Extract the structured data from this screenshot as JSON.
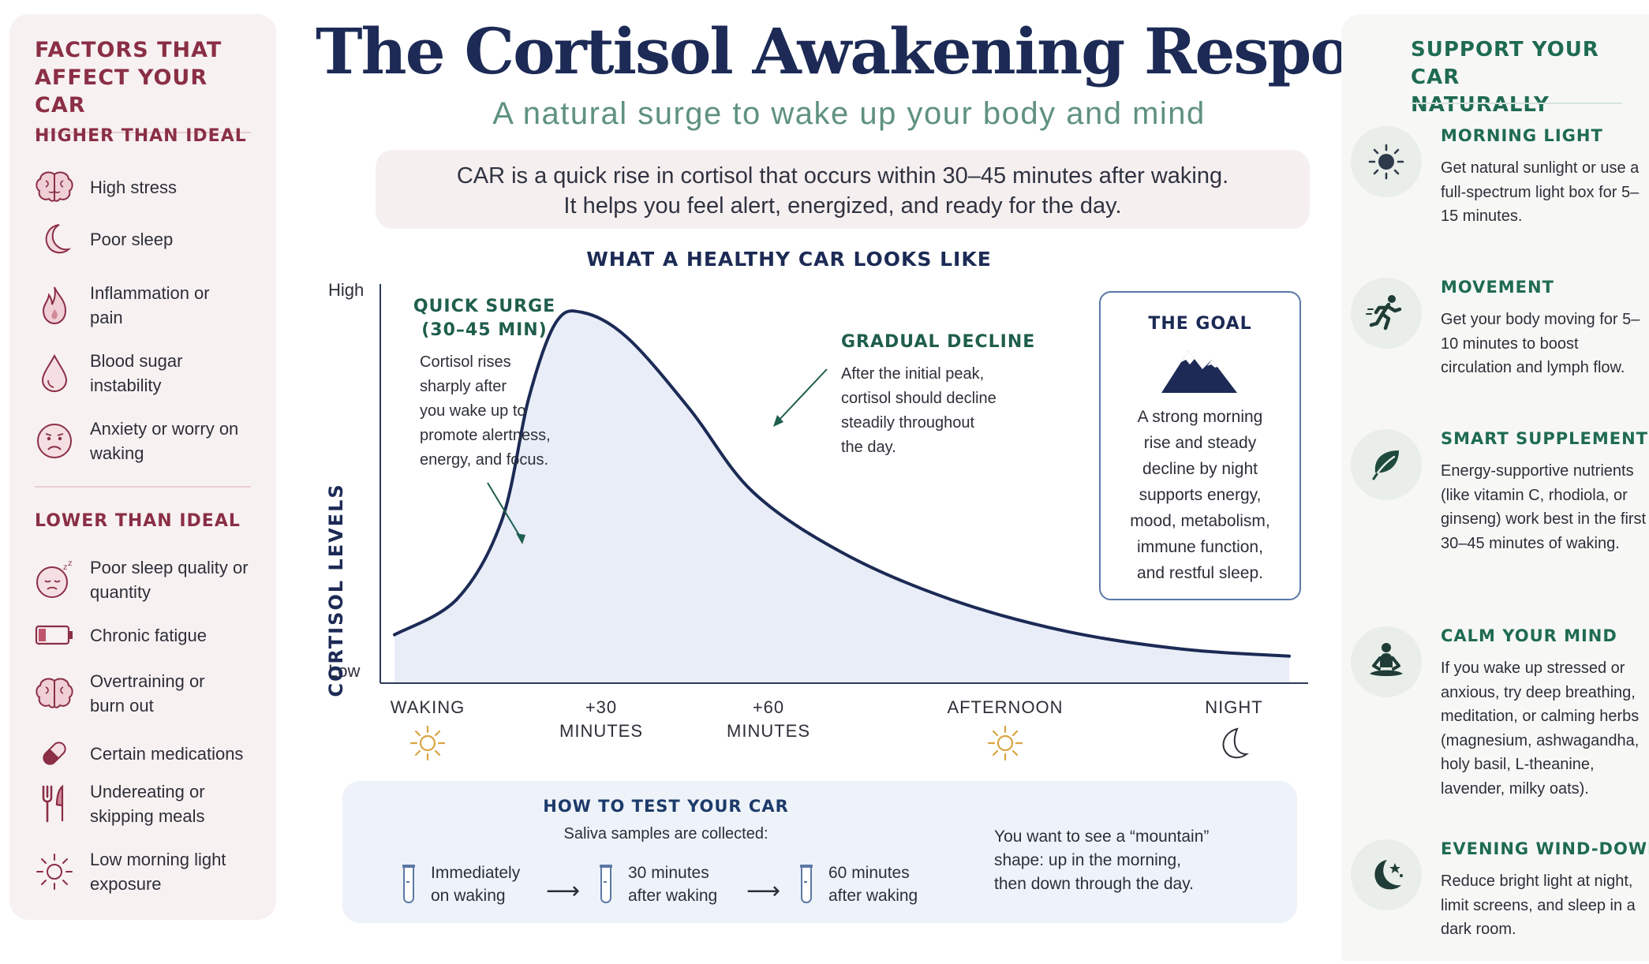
{
  "title": "The Cortisol Awakening Response (CAR)",
  "subtitle": "A natural surge to wake up your body and mind",
  "intro": {
    "line1": "CAR is a quick rise in cortisol that occurs within 30–45 minutes after waking.",
    "line2": "It helps you feel alert, energized, and ready for the day."
  },
  "left": {
    "title_line1": "FACTORS THAT",
    "title_line2": "AFFECT YOUR CAR",
    "higher": {
      "heading": "HIGHER THAN IDEAL",
      "items": [
        {
          "icon": "brain-icon",
          "text": "High stress"
        },
        {
          "icon": "moon-icon",
          "text": "Poor sleep"
        },
        {
          "icon": "flame-icon",
          "text": "Inflammation or pain"
        },
        {
          "icon": "drop-icon",
          "text": "Blood sugar instability"
        },
        {
          "icon": "worried-face-icon",
          "text": "Anxiety or worry on waking"
        }
      ]
    },
    "lower": {
      "heading": "LOWER THAN IDEAL",
      "items": [
        {
          "icon": "sleepy-face-icon",
          "text": "Poor sleep quality or quantity"
        },
        {
          "icon": "low-battery-icon",
          "text": "Chronic fatigue"
        },
        {
          "icon": "brain-icon",
          "text": "Overtraining or burn out"
        },
        {
          "icon": "pill-icon",
          "text": "Certain medications"
        },
        {
          "icon": "fork-knife-icon",
          "text": "Undereating or skipping meals"
        },
        {
          "icon": "sun-icon",
          "text": "Low morning light exposure"
        }
      ]
    }
  },
  "chart": {
    "title": "WHAT A HEALTHY CAR LOOKS LIKE",
    "ylabel": "CORTISOL LEVELS",
    "y_high": "High",
    "y_low": "Low",
    "x_labels": [
      {
        "line1": "WAKING",
        "line2": "",
        "icon": "sun-icon"
      },
      {
        "line1": "+30",
        "line2": "MINUTES",
        "icon": ""
      },
      {
        "line1": "+60",
        "line2": "MINUTES",
        "icon": ""
      },
      {
        "line1": "AFTERNOON",
        "line2": "",
        "icon": "sun-icon"
      },
      {
        "line1": "NIGHT",
        "line2": "",
        "icon": "moon-icon"
      }
    ],
    "surge": {
      "heading_line1": "QUICK SURGE",
      "heading_line2": "(30–45 MIN)",
      "text": [
        "Cortisol rises",
        "sharply after",
        "you wake up to",
        "promote alertness,",
        "energy, and focus."
      ]
    },
    "decline": {
      "heading": "GRADUAL DECLINE",
      "text": [
        "After the initial peak,",
        "cortisol should decline",
        "steadily throughout",
        "the day."
      ]
    },
    "goal": {
      "heading": "THE GOAL",
      "text": [
        "A strong morning",
        "rise and steady",
        "decline by night",
        "supports energy,",
        "mood, metabolism,",
        "immune function,",
        "and restful sleep."
      ]
    }
  },
  "chart_data": {
    "type": "area",
    "title": "WHAT A HEALTHY CAR LOOKS LIKE",
    "ylabel": "CORTISOL LEVELS",
    "xlabel": "",
    "x_ticks": [
      "WAKING",
      "+30 MINUTES",
      "+60 MINUTES",
      "AFTERNOON",
      "NIGHT"
    ],
    "y_ticks": [
      "High",
      "Low"
    ],
    "x": [
      0,
      0.07,
      0.12,
      0.15,
      0.18,
      0.21,
      0.26,
      0.33,
      0.4,
      0.5,
      0.62,
      0.75,
      0.88,
      1.0
    ],
    "values": [
      0.1,
      0.2,
      0.42,
      0.76,
      0.97,
      1.0,
      0.93,
      0.73,
      0.5,
      0.33,
      0.2,
      0.11,
      0.06,
      0.04
    ],
    "ylim": [
      0,
      1
    ],
    "grid": false,
    "colors": {
      "line": "#1c2a55",
      "fill": "#e8edf7"
    }
  },
  "test": {
    "heading": "HOW TO TEST YOUR CAR",
    "sub": "Saliva samples are collected:",
    "samples": [
      {
        "line1": "Immediately",
        "line2": "on waking"
      },
      {
        "line1": "30 minutes",
        "line2": "after waking"
      },
      {
        "line1": "60 minutes",
        "line2": "after waking"
      }
    ],
    "note": [
      "You want to see a “mountain”",
      "shape: up in the morning,",
      "then down through the day."
    ]
  },
  "right": {
    "title_line1": "SUPPORT YOUR CAR",
    "title_line2": "NATURALLY",
    "items": [
      {
        "icon": "sun-icon",
        "heading": "MORNING LIGHT",
        "text": "Get natural sunlight or use a full-spectrum light box for 5–15 minutes."
      },
      {
        "icon": "running-person-icon",
        "heading": "MOVEMENT",
        "text": "Get your body moving for 5–10 minutes to boost circulation and lymph flow."
      },
      {
        "icon": "leaf-icon",
        "heading": "SMART SUPPLEMENTS",
        "text": "Energy-supportive nutrients (like vitamin C, rhodiola, or ginseng) work best in the first 30–45 minutes of waking."
      },
      {
        "icon": "meditation-icon",
        "heading": "CALM YOUR MIND",
        "text": "If you wake up stressed or anxious, try deep breathing, meditation, or calming herbs (magnesium, ashwagandha, holy basil, L-theanine, lavender, milky oats)."
      },
      {
        "icon": "moon-stars-icon",
        "heading": "EVENING WIND-DOWN",
        "text": "Reduce bright light at night, limit screens, and sleep in a dark room."
      }
    ]
  },
  "colors": {
    "navy": "#1c2a55",
    "burgundy": "#8a2f45",
    "green": "#1f6b52",
    "sage": "#5f9182",
    "gold": "#d9a441"
  }
}
